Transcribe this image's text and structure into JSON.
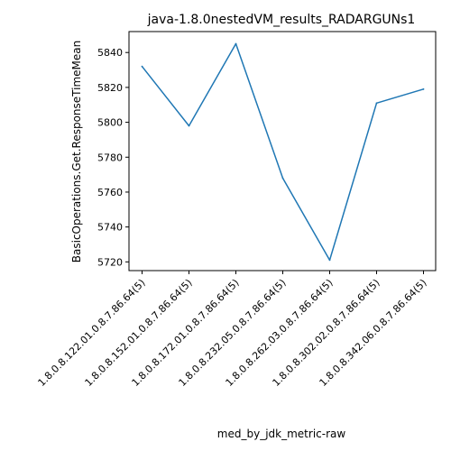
{
  "chart_data": {
    "type": "line",
    "title": "java-1.8.0nestedVM_results_RADARGUNs1",
    "xlabel": "med_by_jdk_metric-raw",
    "ylabel": "BasicOperations.Get.ResponseTimeMean",
    "categories": [
      "1.8.0.8.122.01.0.8.7.86.64(5)",
      "1.8.0.8.152.01.0.8.7.86.64(5)",
      "1.8.0.8.172.01.0.8.7.86.64(5)",
      "1.8.0.8.232.05.0.8.7.86.64(5)",
      "1.8.0.8.262.03.0.8.7.86.64(5)",
      "1.8.0.8.302.02.0.8.7.86.64(5)",
      "1.8.0.8.342.06.0.8.7.86.64(5)"
    ],
    "series": [
      {
        "values": [
          5832,
          5798,
          5845,
          5768,
          5721,
          5811,
          5819
        ]
      }
    ],
    "yticks": [
      5720,
      5740,
      5760,
      5780,
      5800,
      5820,
      5840
    ],
    "ylim": [
      5715,
      5852
    ],
    "grid": false,
    "line_color": "#1f77b4"
  }
}
